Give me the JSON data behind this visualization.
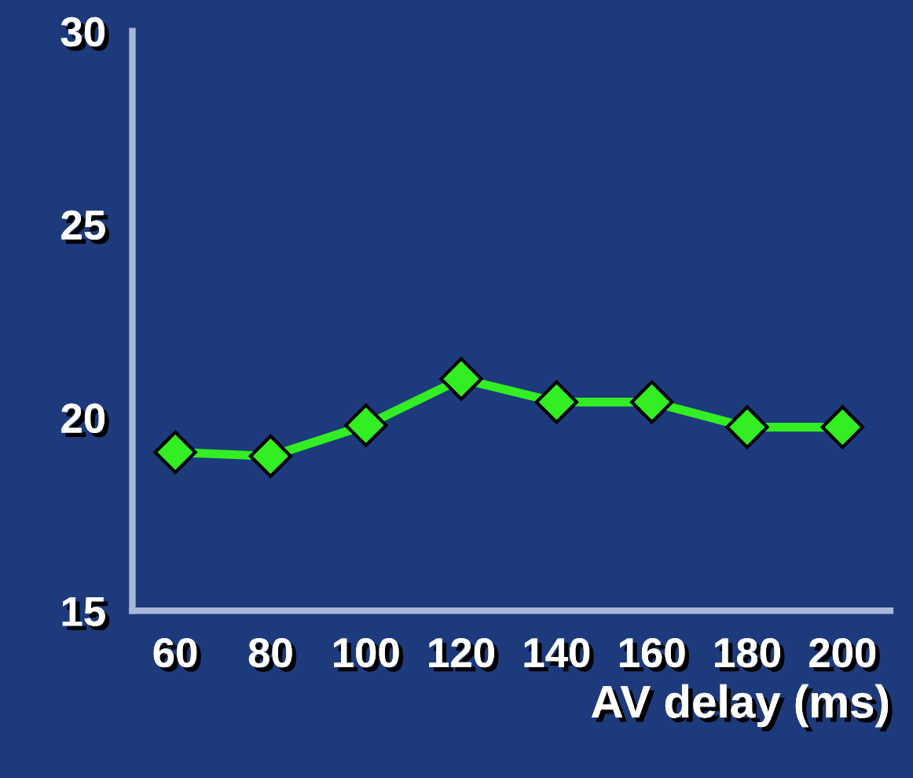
{
  "chart_data": {
    "type": "line",
    "xlabel": "AV delay (ms)",
    "categories": [
      "60",
      "80",
      "100",
      "120",
      "140",
      "160",
      "180",
      "200"
    ],
    "series": [
      {
        "color": "#33ee22",
        "values": [
          19.1,
          19.0,
          19.8,
          21.0,
          20.4,
          20.4,
          19.75,
          19.75
        ]
      }
    ],
    "ylim": [
      15,
      30
    ],
    "yticks": [
      15,
      20,
      25,
      30
    ],
    "grid": false,
    "legend": false,
    "marker": "diamond",
    "line_style": "solid"
  }
}
